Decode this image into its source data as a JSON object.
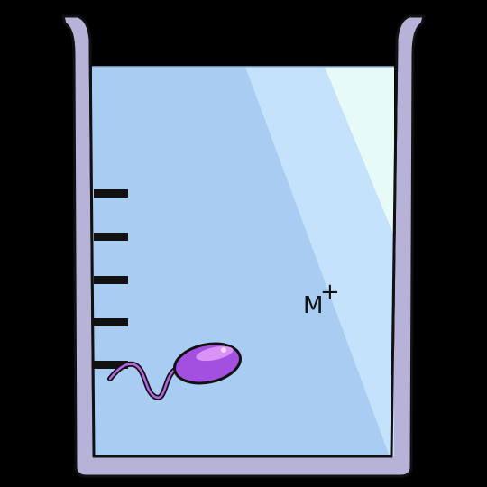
{
  "diagram": {
    "subject": "beaker",
    "contents": "liquid",
    "organism": "flagellated-cell",
    "ion": {
      "symbol": "M",
      "charge": "+"
    },
    "graduation_marks": 5
  },
  "colors": {
    "background": "#000000",
    "beaker_wall": "#b7b2d8",
    "beaker_outline": "#111111",
    "liquid": "#a9cdf2",
    "liquid_highlight": "#c4e2fb",
    "liquid_glare": "#e6fbf7",
    "cell_body": "#a34fe0",
    "cell_highlight": "#d993f4",
    "flagellum": "#b763e6",
    "graduation": "#111111",
    "label": "#111111"
  }
}
